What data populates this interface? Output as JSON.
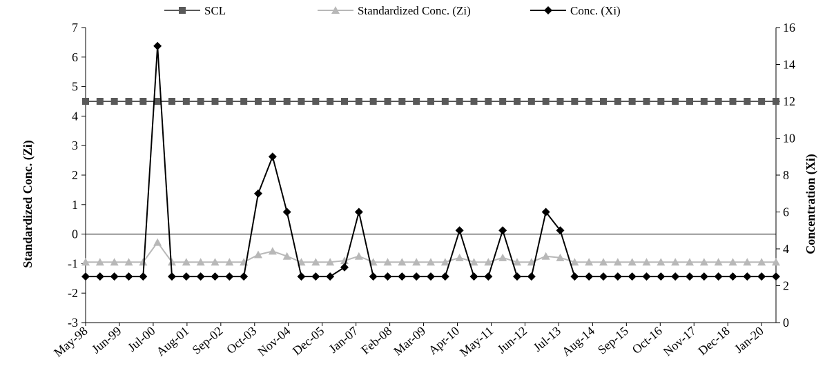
{
  "chart_data": {
    "type": "line",
    "title": "",
    "ylabel_left": "Standardized Conc. (Zi)",
    "ylabel_right": "Concentration (Xi)",
    "ylim_left": [
      -3,
      7
    ],
    "ylim_right": [
      0,
      16
    ],
    "yticks_left": [
      -3,
      -2,
      -1,
      0,
      1,
      2,
      3,
      4,
      5,
      6,
      7
    ],
    "yticks_right": [
      0,
      2,
      4,
      6,
      8,
      10,
      12,
      14,
      16
    ],
    "grid": false,
    "legend_position": "top",
    "x_labels": [
      "May-98",
      "Jun-99",
      "Jul-00",
      "Aug-01",
      "Sep-02",
      "Oct-03",
      "Nov-04",
      "Dec-05",
      "Jan-07",
      "Feb-08",
      "Mar-09",
      "Apr-10",
      "May-11",
      "Jun-12",
      "Jul-13",
      "Aug-14",
      "Sep-15",
      "Oct-16",
      "Nov-17",
      "Dec-18",
      "Jan-20"
    ],
    "series": [
      {
        "name": "SCL",
        "axis": "left",
        "color": "#595959",
        "marker": "square",
        "values": [
          4.5,
          4.5,
          4.5,
          4.5,
          4.5,
          4.5,
          4.5,
          4.5,
          4.5,
          4.5,
          4.5,
          4.5,
          4.5,
          4.5,
          4.5,
          4.5,
          4.5,
          4.5,
          4.5,
          4.5,
          4.5,
          4.5,
          4.5,
          4.5,
          4.5,
          4.5,
          4.5,
          4.5,
          4.5,
          4.5,
          4.5,
          4.5,
          4.5,
          4.5,
          4.5,
          4.5,
          4.5,
          4.5,
          4.5,
          4.5,
          4.5,
          4.5,
          4.5,
          4.5,
          4.5,
          4.5,
          4.5,
          4.5,
          4.5
        ]
      },
      {
        "name": "Standardized Conc. (Zi)",
        "axis": "left",
        "color": "#b8b8b8",
        "marker": "triangle",
        "values": [
          -0.95,
          -0.95,
          -0.95,
          -0.95,
          -0.95,
          -0.28,
          -0.95,
          -0.95,
          -0.95,
          -0.95,
          -0.95,
          -0.95,
          -0.7,
          -0.58,
          -0.75,
          -0.95,
          -0.95,
          -0.95,
          -0.9,
          -0.75,
          -0.95,
          -0.95,
          -0.95,
          -0.95,
          -0.95,
          -0.95,
          -0.8,
          -0.95,
          -0.95,
          -0.8,
          -0.95,
          -0.95,
          -0.75,
          -0.8,
          -0.95,
          -0.95,
          -0.95,
          -0.95,
          -0.95,
          -0.95,
          -0.95,
          -0.95,
          -0.95,
          -0.95,
          -0.95,
          -0.95,
          -0.95,
          -0.95,
          -0.95
        ]
      },
      {
        "name": "Conc. (Xi)",
        "axis": "right",
        "color": "#000000",
        "marker": "diamond",
        "values": [
          2.5,
          2.5,
          2.5,
          2.5,
          2.5,
          15,
          2.5,
          2.5,
          2.5,
          2.5,
          2.5,
          2.5,
          7,
          9,
          6,
          2.5,
          2.5,
          2.5,
          3,
          6,
          2.5,
          2.5,
          2.5,
          2.5,
          2.5,
          2.5,
          5,
          2.5,
          2.5,
          5,
          2.5,
          2.5,
          6,
          5,
          2.5,
          2.5,
          2.5,
          2.5,
          2.5,
          2.5,
          2.5,
          2.5,
          2.5,
          2.5,
          2.5,
          2.5,
          2.5,
          2.5,
          2.5
        ]
      }
    ]
  }
}
